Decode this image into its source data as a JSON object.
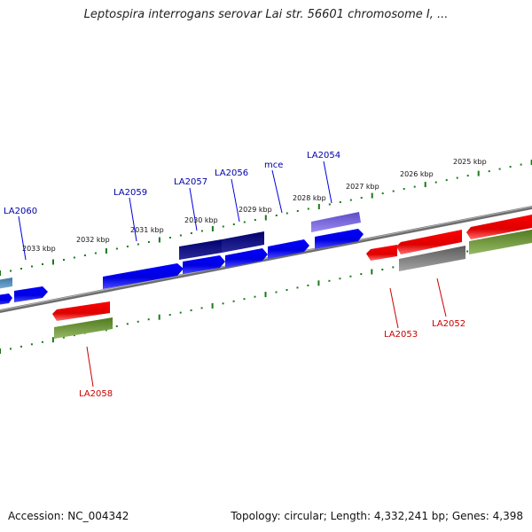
{
  "title": "Leptospira interrogans serovar Lai str. 56601 chromosome I, ...",
  "footer": {
    "accession": "Accession: NC_004342",
    "topology": "Topology: circular; Length: 4,332,241 bp; Genes: 4,398"
  },
  "colors": {
    "forward_gene": "#0000ee",
    "dark_gene": "#000077",
    "purple_gene": "#6a5acd",
    "steel_gene": "#4682b4",
    "reverse_red": "#ee0000",
    "reverse_olive": "#557a22",
    "reverse_gray": "#666666",
    "label_forward": "#0000aa",
    "label_reverse": "#cc0000",
    "scale_dots": "#1a7a1a",
    "backbone": "#888888"
  },
  "scale_labels": [
    "2025 kbp",
    "2026 kbp",
    "2027 kbp",
    "2028 kbp",
    "2029 kbp",
    "2030 kbp",
    "2031 kbp",
    "2032 kbp",
    "2033 kbp"
  ],
  "genes_forward": [
    {
      "label": "LA2054",
      "color": "purple_gene"
    },
    {
      "label": "mce",
      "color": "forward_gene"
    },
    {
      "label": "LA2056",
      "color": "dark_gene"
    },
    {
      "label": "LA2057",
      "color": "dark_gene"
    },
    {
      "label": "LA2059",
      "color": "forward_gene"
    },
    {
      "label": "LA2060",
      "color": "forward_gene"
    }
  ],
  "genes_reverse": [
    {
      "label": "LA2052",
      "color": "reverse_gray"
    },
    {
      "label": "LA2053",
      "color": "reverse_red"
    },
    {
      "label": "LA2058",
      "color": "reverse_olive"
    }
  ]
}
